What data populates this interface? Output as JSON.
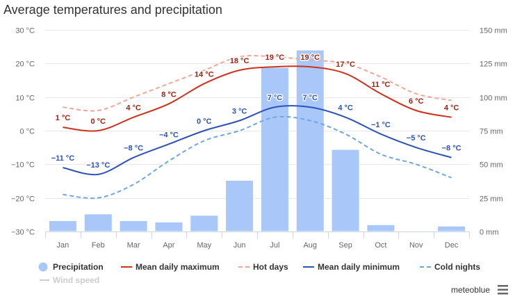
{
  "credits": "meteoblue",
  "icons": {
    "menu": "hamburger-menu-icon",
    "legend_precipitation": "circle-symbol"
  },
  "colors": {
    "text": "#333333",
    "axis_labels": "#666666",
    "grid": "#e6e6e6",
    "hidden_series": "#cccccc"
  },
  "chart_data": {
    "type": "bar",
    "title": "Average temperatures and precipitation",
    "categories": [
      "Jan",
      "Feb",
      "Mar",
      "Apr",
      "May",
      "Jun",
      "Jul",
      "Aug",
      "Sep",
      "Oct",
      "Nov",
      "Dec"
    ],
    "y_left": {
      "min": -30,
      "max": 30,
      "tick_values": [
        30,
        20,
        10,
        0,
        -10,
        -20,
        -30
      ],
      "tick_labels": [
        "30 °C",
        "20 °C",
        "10 °C",
        "0 °C",
        "−10 °C",
        "−20 °C",
        "−30 °C"
      ]
    },
    "y_right": {
      "min": 0,
      "max": 150,
      "tick_values": [
        150,
        125,
        100,
        75,
        50,
        25,
        0
      ],
      "tick_labels": [
        "150 mm",
        "125 mm",
        "100 mm",
        "75 mm",
        "50 mm",
        "25 mm",
        "0 mm"
      ]
    },
    "grid": true,
    "legend": "bottom",
    "series": [
      {
        "name": "Precipitation",
        "type": "bar",
        "axis": "right",
        "color": "#a9c7f8",
        "values": [
          8,
          13,
          8,
          7,
          12,
          38,
          122,
          135,
          61,
          5,
          0,
          4
        ]
      },
      {
        "name": "Mean daily maximum",
        "type": "line",
        "axis": "left",
        "dashed": false,
        "color": "#d1301a",
        "label_color": "#a1220d",
        "values": [
          1,
          0,
          4,
          8,
          14,
          18,
          19,
          19,
          17,
          11,
          6,
          4
        ],
        "labels": [
          "1 °C",
          "0 °C",
          "4 °C",
          "8 °C",
          "14 °C",
          "18 °C",
          "19 °C",
          "19 °C",
          "17 °C",
          "11 °C",
          "6 °C",
          "4 °C"
        ]
      },
      {
        "name": "Hot days",
        "type": "line",
        "axis": "left",
        "dashed": true,
        "color": "#f4a597",
        "values": [
          7,
          6,
          10,
          14,
          18,
          22,
          22,
          21,
          20,
          16,
          11,
          9
        ]
      },
      {
        "name": "Mean daily minimum",
        "type": "line",
        "axis": "left",
        "dashed": false,
        "color": "#2b52bd",
        "label_color": "#2b52bd",
        "values": [
          -11,
          -13,
          -8,
          -4,
          0,
          3,
          7,
          7,
          4,
          -1,
          -5,
          -8
        ],
        "labels": [
          "−11 °C",
          "−13 °C",
          "−8 °C",
          "−4 °C",
          "0 °C",
          "3 °C",
          "7 °C",
          "7 °C",
          "4 °C",
          "−1 °C",
          "−5 °C",
          "−8 °C"
        ]
      },
      {
        "name": "Cold nights",
        "type": "line",
        "axis": "left",
        "dashed": true,
        "color": "#6ea6e2",
        "values": [
          -19,
          -20,
          -16,
          -9,
          -3,
          0,
          4,
          3,
          -1,
          -7,
          -10,
          -14
        ]
      },
      {
        "name": "Wind speed",
        "type": "line",
        "axis": "left",
        "visible": false,
        "color": "#cccccc"
      }
    ]
  }
}
